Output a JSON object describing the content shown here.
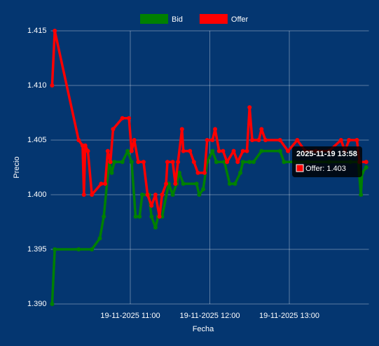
{
  "chart_data": {
    "type": "line",
    "x_label": "Fecha",
    "y_label": "Precio",
    "xlim": [
      "2025-11-19 10:00",
      "2025-11-19 14:00"
    ],
    "xticks": [
      {
        "value": "2025-11-19 11:00",
        "label": "19-11-2025 11:00"
      },
      {
        "value": "2025-11-19 12:00",
        "label": "19-11-2025 12:00"
      },
      {
        "value": "2025-11-19 13:00",
        "label": "19-11-2025 13:00"
      }
    ],
    "ylim": [
      1.39,
      1.415
    ],
    "yticks": [
      {
        "value": 1.39,
        "label": "1.390"
      },
      {
        "value": 1.395,
        "label": "1.395"
      },
      {
        "value": 1.4,
        "label": "1.400"
      },
      {
        "value": 1.405,
        "label": "1.405"
      },
      {
        "value": 1.41,
        "label": "1.410"
      },
      {
        "value": 1.415,
        "label": "1.415"
      }
    ],
    "grid": true,
    "legend": "top",
    "series": [
      {
        "name": "Bid",
        "color": "#008000",
        "x": [
          "2025-11-19 10:01",
          "2025-11-19 10:03",
          "2025-11-19 10:21",
          "2025-11-19 10:31",
          "2025-11-19 10:37",
          "2025-11-19 10:40",
          "2025-11-19 10:44",
          "2025-11-19 10:46",
          "2025-11-19 10:48",
          "2025-11-19 10:54",
          "2025-11-19 10:58",
          "2025-11-19 11:01",
          "2025-11-19 11:04",
          "2025-11-19 11:07",
          "2025-11-19 11:09",
          "2025-11-19 11:14",
          "2025-11-19 11:16",
          "2025-11-19 11:19",
          "2025-11-19 11:21",
          "2025-11-19 11:24",
          "2025-11-19 11:29",
          "2025-11-19 11:32",
          "2025-11-19 11:35",
          "2025-11-19 11:37",
          "2025-11-19 11:40",
          "2025-11-19 11:50",
          "2025-11-19 11:52",
          "2025-11-19 11:55",
          "2025-11-19 11:58",
          "2025-11-19 12:02",
          "2025-11-19 12:05",
          "2025-11-19 12:11",
          "2025-11-19 12:15",
          "2025-11-19 12:19",
          "2025-11-19 12:23",
          "2025-11-19 12:25",
          "2025-11-19 12:30",
          "2025-11-19 12:33",
          "2025-11-19 12:39",
          "2025-11-19 12:53",
          "2025-11-19 12:56",
          "2025-11-19 13:04",
          "2025-11-19 13:14",
          "2025-11-19 13:30",
          "2025-11-19 13:46",
          "2025-11-19 13:52",
          "2025-11-19 13:54",
          "2025-11-19 13:55",
          "2025-11-19 13:58"
        ],
        "values": [
          1.39,
          1.395,
          1.395,
          1.395,
          1.396,
          1.398,
          1.403,
          1.402,
          1.403,
          1.403,
          1.404,
          1.403,
          1.398,
          1.398,
          1.4,
          1.4,
          1.398,
          1.397,
          1.398,
          1.398,
          1.401,
          1.4,
          1.401,
          1.402,
          1.401,
          1.401,
          1.4,
          1.4005,
          1.403,
          1.404,
          1.403,
          1.403,
          1.401,
          1.401,
          1.402,
          1.403,
          1.403,
          1.403,
          1.404,
          1.404,
          1.403,
          1.403,
          1.403,
          1.403,
          1.403,
          1.403,
          1.4,
          1.402,
          1.4025
        ]
      },
      {
        "name": "Offer",
        "color": "#ff0000",
        "x": [
          "2025-11-19 10:01",
          "2025-11-19 10:03",
          "2025-11-19 10:21",
          "2025-11-19 10:24",
          "2025-11-19 10:25",
          "2025-11-19 10:26",
          "2025-11-19 10:28",
          "2025-11-19 10:31",
          "2025-11-19 10:38",
          "2025-11-19 10:41",
          "2025-11-19 10:43",
          "2025-11-19 10:45",
          "2025-11-19 10:47",
          "2025-11-19 10:54",
          "2025-11-19 10:59",
          "2025-11-19 11:01",
          "2025-11-19 11:03",
          "2025-11-19 11:06",
          "2025-11-19 11:10",
          "2025-11-19 11:13",
          "2025-11-19 11:16",
          "2025-11-19 11:19",
          "2025-11-19 11:22",
          "2025-11-19 11:24",
          "2025-11-19 11:27",
          "2025-11-19 11:28",
          "2025-11-19 11:32",
          "2025-11-19 11:34",
          "2025-11-19 11:36",
          "2025-11-19 11:39",
          "2025-11-19 11:40",
          "2025-11-19 11:45",
          "2025-11-19 11:48",
          "2025-11-19 11:51",
          "2025-11-19 11:56",
          "2025-11-19 11:58",
          "2025-11-19 12:02",
          "2025-11-19 12:04",
          "2025-11-19 12:07",
          "2025-11-19 12:10",
          "2025-11-19 12:13",
          "2025-11-19 12:18",
          "2025-11-19 12:21",
          "2025-11-19 12:25",
          "2025-11-19 12:28",
          "2025-11-19 12:30",
          "2025-11-19 12:32",
          "2025-11-19 12:37",
          "2025-11-19 12:39",
          "2025-11-19 12:42",
          "2025-11-19 12:53",
          "2025-11-19 12:59",
          "2025-11-19 13:06",
          "2025-11-19 13:12",
          "2025-11-19 13:20",
          "2025-11-19 13:30",
          "2025-11-19 13:39",
          "2025-11-19 13:42",
          "2025-11-19 13:45",
          "2025-11-19 13:51",
          "2025-11-19 13:53",
          "2025-11-19 13:58"
        ],
        "values": [
          1.41,
          1.415,
          1.405,
          1.4045,
          1.4,
          1.4045,
          1.404,
          1.4,
          1.401,
          1.401,
          1.404,
          1.403,
          1.406,
          1.407,
          1.407,
          1.404,
          1.405,
          1.403,
          1.403,
          1.4,
          1.399,
          1.4,
          1.398,
          1.4,
          1.401,
          1.403,
          1.403,
          1.401,
          1.403,
          1.406,
          1.404,
          1.404,
          1.403,
          1.402,
          1.402,
          1.405,
          1.405,
          1.406,
          1.404,
          1.404,
          1.403,
          1.404,
          1.403,
          1.404,
          1.404,
          1.408,
          1.405,
          1.405,
          1.406,
          1.405,
          1.405,
          1.404,
          1.405,
          1.404,
          1.404,
          1.404,
          1.405,
          1.404,
          1.405,
          1.405,
          1.403,
          1.403
        ]
      }
    ],
    "tooltip": {
      "title": "2025-11-19 13:58",
      "body": "Offer: 1.403"
    }
  }
}
